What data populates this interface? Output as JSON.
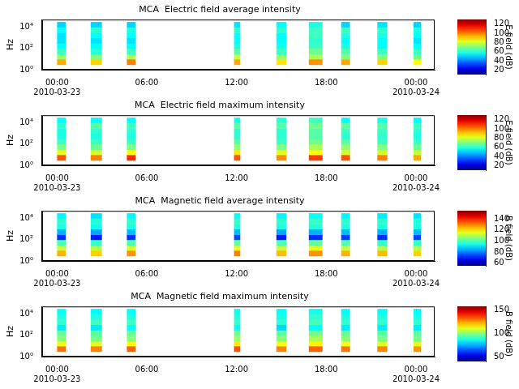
{
  "chart_data": [
    {
      "type": "heatmap",
      "title": "MCA  Electric field average intensity",
      "ylabel": "Hz",
      "log": "y",
      "grid": false,
      "xlim": [
        "2010-03-22T23:00",
        "2010-03-24T01:15"
      ],
      "xticks": [
        {
          "value": "2010-03-23T00:00",
          "label": "00:00\n2010-03-23"
        },
        {
          "value": "2010-03-23T06:00",
          "label": "06:00"
        },
        {
          "value": "2010-03-23T12:00",
          "label": "12:00"
        },
        {
          "value": "2010-03-23T18:00",
          "label": "18:00"
        },
        {
          "value": "2010-03-24T00:00",
          "label": "00:00\n2010-03-24"
        }
      ],
      "ylim": [
        1,
        50000
      ],
      "yticks": [
        {
          "value": 1,
          "label": "10⁰"
        },
        {
          "value": 100,
          "label": "10²"
        },
        {
          "value": 10000,
          "label": "10⁴"
        }
      ],
      "time_bins": [
        [
          "2010-03-23T00:00",
          "2010-03-23T00:35"
        ],
        [
          "2010-03-23T02:15",
          "2010-03-23T03:00"
        ],
        [
          "2010-03-23T04:40",
          "2010-03-23T05:15"
        ],
        [
          "2010-03-23T11:50",
          "2010-03-23T12:15"
        ],
        [
          "2010-03-23T14:40",
          "2010-03-23T15:20"
        ],
        [
          "2010-03-23T16:50",
          "2010-03-23T17:45"
        ],
        [
          "2010-03-23T19:00",
          "2010-03-23T19:35"
        ],
        [
          "2010-03-23T21:25",
          "2010-03-23T22:05"
        ],
        [
          "2010-03-23T23:50",
          "2010-03-24T00:20"
        ]
      ],
      "freq_bins": [
        3,
        10,
        30,
        100,
        300,
        1000,
        3000,
        10000,
        30000
      ],
      "cells": [
        [
          95,
          72,
          62,
          55,
          52,
          52,
          55,
          50
        ],
        [
          90,
          70,
          60,
          55,
          52,
          55,
          60,
          50
        ],
        [
          100,
          75,
          62,
          55,
          52,
          55,
          58,
          50
        ],
        [
          95,
          78,
          65,
          58,
          55,
          55,
          60,
          52
        ],
        [
          88,
          72,
          62,
          57,
          55,
          55,
          60,
          55
        ],
        [
          98,
          75,
          68,
          62,
          60,
          62,
          62,
          58
        ],
        [
          95,
          70,
          65,
          58,
          55,
          58,
          62,
          50
        ],
        [
          90,
          70,
          62,
          55,
          55,
          58,
          60,
          52
        ],
        [
          85,
          68,
          62,
          55,
          52,
          55,
          58,
          50
        ]
      ],
      "colorbar": {
        "title": "E field (dB)",
        "range": [
          10,
          130
        ],
        "ticks": [
          20,
          40,
          60,
          80,
          100,
          120
        ]
      }
    },
    {
      "type": "heatmap",
      "title": "MCA  Electric field maximum intensity",
      "ylabel": "Hz",
      "log": "y",
      "grid": false,
      "xlim": [
        "2010-03-22T23:00",
        "2010-03-24T01:15"
      ],
      "xticks": [
        {
          "value": "2010-03-23T00:00",
          "label": "00:00\n2010-03-23"
        },
        {
          "value": "2010-03-23T06:00",
          "label": "06:00"
        },
        {
          "value": "2010-03-23T12:00",
          "label": "12:00"
        },
        {
          "value": "2010-03-23T18:00",
          "label": "18:00"
        },
        {
          "value": "2010-03-24T00:00",
          "label": "00:00\n2010-03-24"
        }
      ],
      "ylim": [
        1,
        50000
      ],
      "yticks": [
        {
          "value": 1,
          "label": "10⁰"
        },
        {
          "value": 100,
          "label": "10²"
        },
        {
          "value": 10000,
          "label": "10⁴"
        }
      ],
      "time_bins": [
        [
          "2010-03-23T00:00",
          "2010-03-23T00:35"
        ],
        [
          "2010-03-23T02:15",
          "2010-03-23T03:00"
        ],
        [
          "2010-03-23T04:40",
          "2010-03-23T05:15"
        ],
        [
          "2010-03-23T11:50",
          "2010-03-23T12:15"
        ],
        [
          "2010-03-23T14:40",
          "2010-03-23T15:20"
        ],
        [
          "2010-03-23T16:50",
          "2010-03-23T17:45"
        ],
        [
          "2010-03-23T19:00",
          "2010-03-23T19:35"
        ],
        [
          "2010-03-23T21:25",
          "2010-03-23T22:05"
        ],
        [
          "2010-03-23T23:50",
          "2010-03-24T00:20"
        ]
      ],
      "freq_bins": [
        3,
        10,
        30,
        100,
        300,
        1000,
        3000,
        10000,
        30000
      ],
      "cells": [
        [
          105,
          82,
          70,
          62,
          58,
          58,
          60,
          55
        ],
        [
          100,
          80,
          68,
          62,
          58,
          60,
          65,
          55
        ],
        [
          110,
          85,
          70,
          62,
          58,
          60,
          62,
          55
        ],
        [
          105,
          88,
          72,
          65,
          60,
          60,
          65,
          58
        ],
        [
          98,
          82,
          70,
          62,
          60,
          60,
          65,
          60
        ],
        [
          108,
          85,
          75,
          68,
          65,
          65,
          68,
          62
        ],
        [
          105,
          80,
          72,
          65,
          60,
          62,
          66,
          55
        ],
        [
          100,
          80,
          70,
          62,
          60,
          62,
          65,
          58
        ],
        [
          95,
          78,
          68,
          62,
          58,
          60,
          62,
          55
        ]
      ],
      "colorbar": {
        "title": "E field (dB)",
        "range": [
          10,
          130
        ],
        "ticks": [
          20,
          40,
          60,
          80,
          100,
          120
        ]
      }
    },
    {
      "type": "heatmap",
      "title": "MCA  Magnetic field average intensity",
      "ylabel": "Hz",
      "log": "y",
      "grid": false,
      "xlim": [
        "2010-03-22T23:00",
        "2010-03-24T01:15"
      ],
      "xticks": [
        {
          "value": "2010-03-23T00:00",
          "label": "00:00\n2010-03-23"
        },
        {
          "value": "2010-03-23T06:00",
          "label": "06:00"
        },
        {
          "value": "2010-03-23T12:00",
          "label": "12:00"
        },
        {
          "value": "2010-03-23T18:00",
          "label": "18:00"
        },
        {
          "value": "2010-03-24T00:00",
          "label": "00:00\n2010-03-24"
        }
      ],
      "ylim": [
        1,
        50000
      ],
      "yticks": [
        {
          "value": 1,
          "label": "10⁰"
        },
        {
          "value": 100,
          "label": "10²"
        },
        {
          "value": 10000,
          "label": "10⁴"
        }
      ],
      "time_bins": [
        [
          "2010-03-23T00:00",
          "2010-03-23T00:35"
        ],
        [
          "2010-03-23T02:15",
          "2010-03-23T03:00"
        ],
        [
          "2010-03-23T04:40",
          "2010-03-23T05:15"
        ],
        [
          "2010-03-23T11:50",
          "2010-03-23T12:15"
        ],
        [
          "2010-03-23T14:40",
          "2010-03-23T15:20"
        ],
        [
          "2010-03-23T16:50",
          "2010-03-23T17:45"
        ],
        [
          "2010-03-23T19:00",
          "2010-03-23T19:35"
        ],
        [
          "2010-03-23T21:25",
          "2010-03-23T22:05"
        ],
        [
          "2010-03-23T23:50",
          "2010-03-24T00:20"
        ]
      ],
      "freq_bins": [
        3,
        10,
        30,
        100,
        300,
        1000,
        3000,
        10000,
        30000
      ],
      "cells": [
        [
          125,
          112,
          100,
          72,
          85,
          95,
          97,
          92
        ],
        [
          122,
          110,
          98,
          70,
          84,
          94,
          96,
          90
        ],
        [
          128,
          114,
          100,
          72,
          86,
          95,
          97,
          92
        ],
        [
          130,
          115,
          102,
          75,
          86,
          95,
          98,
          93
        ],
        [
          124,
          112,
          100,
          70,
          84,
          95,
          97,
          92
        ],
        [
          128,
          115,
          102,
          72,
          85,
          96,
          98,
          93
        ],
        [
          125,
          112,
          100,
          74,
          86,
          95,
          97,
          92
        ],
        [
          124,
          110,
          98,
          72,
          85,
          95,
          97,
          91
        ],
        [
          122,
          110,
          98,
          74,
          86,
          95,
          96,
          90
        ]
      ],
      "colorbar": {
        "title": "B field (dB)",
        "range": [
          55,
          155
        ],
        "ticks": [
          60,
          80,
          100,
          120,
          140
        ]
      }
    },
    {
      "type": "heatmap",
      "title": "MCA  Magnetic field maximum intensity",
      "ylabel": "Hz",
      "log": "y",
      "grid": false,
      "xlim": [
        "2010-03-22T23:00",
        "2010-03-24T01:15"
      ],
      "xticks": [
        {
          "value": "2010-03-23T00:00",
          "label": "00:00\n2010-03-23"
        },
        {
          "value": "2010-03-23T06:00",
          "label": "06:00"
        },
        {
          "value": "2010-03-23T12:00",
          "label": "12:00"
        },
        {
          "value": "2010-03-23T18:00",
          "label": "18:00"
        },
        {
          "value": "2010-03-24T00:00",
          "label": "00:00\n2010-03-24"
        }
      ],
      "ylim": [
        1,
        50000
      ],
      "yticks": [
        {
          "value": 1,
          "label": "10⁰"
        },
        {
          "value": 100,
          "label": "10²"
        },
        {
          "value": 10000,
          "label": "10⁴"
        }
      ],
      "time_bins": [
        [
          "2010-03-23T00:00",
          "2010-03-23T00:35"
        ],
        [
          "2010-03-23T02:15",
          "2010-03-23T03:00"
        ],
        [
          "2010-03-23T04:40",
          "2010-03-23T05:15"
        ],
        [
          "2010-03-23T11:50",
          "2010-03-23T12:15"
        ],
        [
          "2010-03-23T14:40",
          "2010-03-23T15:20"
        ],
        [
          "2010-03-23T16:50",
          "2010-03-23T17:45"
        ],
        [
          "2010-03-23T19:00",
          "2010-03-23T19:35"
        ],
        [
          "2010-03-23T21:25",
          "2010-03-23T22:05"
        ],
        [
          "2010-03-23T23:50",
          "2010-03-24T00:20"
        ]
      ],
      "freq_bins": [
        3,
        10,
        30,
        100,
        300,
        1000,
        3000,
        10000,
        30000
      ],
      "cells": [
        [
          130,
          112,
          100,
          95,
          82,
          90,
          88,
          85
        ],
        [
          128,
          110,
          98,
          94,
          82,
          92,
          88,
          84
        ],
        [
          132,
          114,
          100,
          95,
          84,
          92,
          88,
          85
        ],
        [
          134,
          116,
          102,
          96,
          84,
          90,
          88,
          86
        ],
        [
          128,
          112,
          100,
          94,
          80,
          90,
          87,
          85
        ],
        [
          132,
          115,
          104,
          96,
          84,
          92,
          90,
          86
        ],
        [
          130,
          112,
          100,
          95,
          82,
          90,
          88,
          84
        ],
        [
          128,
          110,
          98,
          94,
          82,
          90,
          88,
          85
        ],
        [
          126,
          110,
          98,
          94,
          82,
          90,
          87,
          84
        ]
      ],
      "colorbar": {
        "title": "B field (dB)",
        "range": [
          40,
          158
        ],
        "ticks": [
          50,
          100,
          150
        ]
      }
    }
  ]
}
